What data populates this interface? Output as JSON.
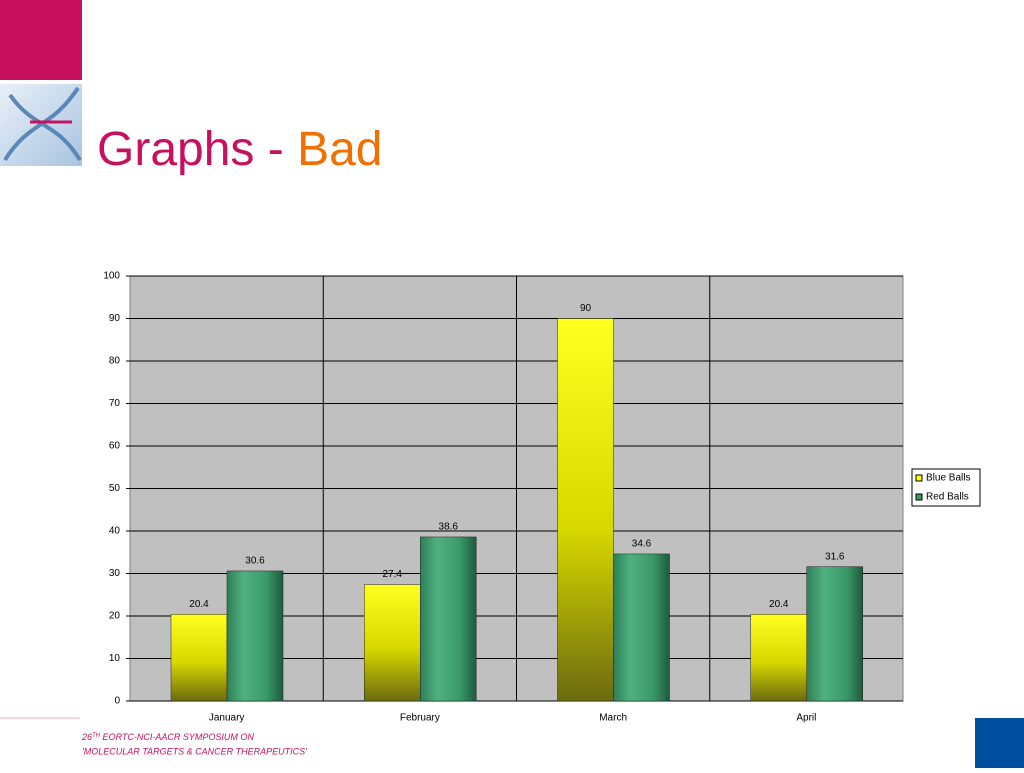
{
  "slide": {
    "title_main": "Graphs - ",
    "title_accent": "Bad",
    "footer": {
      "number": "26",
      "superscript": "TH",
      "line1": " EORTC-NCI-AACR SYMPOSIUM ON",
      "line2": "'MOLECULAR TARGETS & CANCER THERAPEUTICS'"
    }
  },
  "chart_data": {
    "type": "bar",
    "categories": [
      "January",
      "February",
      "March",
      "April"
    ],
    "series": [
      {
        "name": "Blue Balls",
        "color": "#ffff00",
        "values": [
          20.4,
          27.4,
          90,
          20.4
        ]
      },
      {
        "name": "Red Balls",
        "color": "#3a9a6a",
        "values": [
          30.6,
          38.6,
          34.6,
          31.6
        ]
      }
    ],
    "ylim": [
      0,
      100
    ],
    "yticks": [
      0,
      10,
      20,
      30,
      40,
      50,
      60,
      70,
      80,
      90,
      100
    ],
    "grid": true,
    "legend": "right"
  }
}
